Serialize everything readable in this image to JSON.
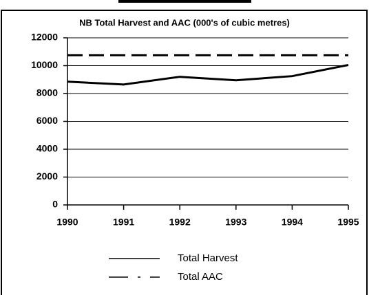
{
  "chart_data": {
    "type": "line",
    "title": "NB Total Harvest and AAC (000's of cubic metres)",
    "x": [
      1990,
      1991,
      1992,
      1993,
      1994,
      1995
    ],
    "xlim": [
      1990,
      1995
    ],
    "xticks": [
      1990,
      1991,
      1992,
      1993,
      1994,
      1995
    ],
    "ylim": [
      0,
      12000
    ],
    "yticks": [
      0,
      2000,
      4000,
      6000,
      8000,
      10000,
      12000
    ],
    "grid": true,
    "series": [
      {
        "name": "Total Harvest",
        "color": "#000000",
        "line_style": "solid",
        "values": [
          8850,
          8650,
          9200,
          8950,
          9250,
          10050
        ]
      },
      {
        "name": "Total AAC",
        "color": "#000000",
        "line_style": "dashed",
        "values": [
          10750,
          10750,
          10750,
          10750,
          10750,
          10750
        ]
      }
    ]
  }
}
